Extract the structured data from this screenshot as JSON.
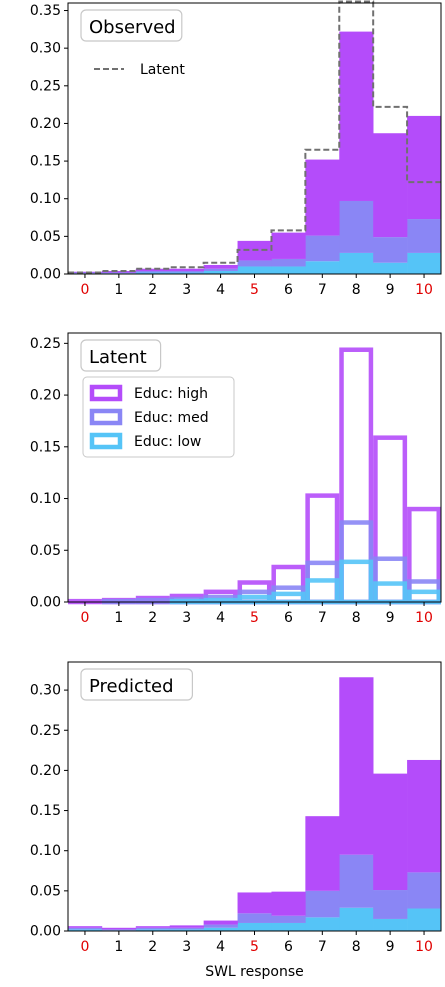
{
  "colors": {
    "high": "#b44cfa",
    "med": "#8a86f5",
    "low": "#55c4f7",
    "latent_line": "#707070",
    "highlight_tick": "#e00000",
    "axis": "#000000"
  },
  "chart_data": [
    {
      "type": "bar",
      "title": "Observed",
      "categories": [
        "0",
        "1",
        "2",
        "3",
        "4",
        "5",
        "6",
        "7",
        "8",
        "9",
        "10"
      ],
      "highlight_categories": [
        "0",
        "5",
        "10"
      ],
      "ylim": [
        0,
        0.36
      ],
      "yticks": [
        "0.00",
        "0.05",
        "0.10",
        "0.15",
        "0.20",
        "0.25",
        "0.30",
        "0.35"
      ],
      "stacked": true,
      "series": [
        {
          "key": "low",
          "values": [
            0.001,
            0.001,
            0.002,
            0.002,
            0.004,
            0.01,
            0.01,
            0.017,
            0.028,
            0.015,
            0.028
          ]
        },
        {
          "key": "med",
          "values": [
            0.001,
            0.001,
            0.002,
            0.002,
            0.003,
            0.008,
            0.01,
            0.034,
            0.069,
            0.034,
            0.045
          ]
        },
        {
          "key": "high",
          "values": [
            0.001,
            0.002,
            0.003,
            0.003,
            0.005,
            0.026,
            0.035,
            0.101,
            0.225,
            0.138,
            0.137
          ]
        }
      ],
      "overlay": {
        "name": "Latent",
        "style": "dashed-step",
        "values": [
          0.002,
          0.004,
          0.007,
          0.009,
          0.015,
          0.032,
          0.058,
          0.165,
          0.362,
          0.222,
          0.122
        ]
      },
      "legend": {
        "placement": "upper-left",
        "entries": [
          {
            "label": "Latent"
          }
        ]
      }
    },
    {
      "type": "bar",
      "title": "Latent",
      "categories": [
        "0",
        "1",
        "2",
        "3",
        "4",
        "5",
        "6",
        "7",
        "8",
        "9",
        "10"
      ],
      "highlight_categories": [
        "0",
        "5",
        "10"
      ],
      "ylim": [
        0,
        0.26
      ],
      "yticks": [
        "0.00",
        "0.05",
        "0.10",
        "0.15",
        "0.20",
        "0.25"
      ],
      "stacked": false,
      "series": [
        {
          "key": "high",
          "name": "Educ: high",
          "values": [
            0.003,
            0.004,
            0.006,
            0.008,
            0.012,
            0.021,
            0.036,
            0.105,
            0.246,
            0.161,
            0.092
          ]
        },
        {
          "key": "med",
          "name": "Educ: med",
          "values": [
            0.002,
            0.003,
            0.004,
            0.005,
            0.007,
            0.012,
            0.016,
            0.04,
            0.079,
            0.044,
            0.022
          ]
        },
        {
          "key": "low",
          "name": "Educ: low",
          "values": [
            0.001,
            0.002,
            0.002,
            0.003,
            0.004,
            0.007,
            0.01,
            0.023,
            0.041,
            0.02,
            0.012
          ]
        }
      ],
      "legend": {
        "placement": "upper-left",
        "entries": [
          {
            "key": "high",
            "label": "Educ: high"
          },
          {
            "key": "med",
            "label": "Educ: med"
          },
          {
            "key": "low",
            "label": "Educ: low"
          }
        ]
      }
    },
    {
      "type": "bar",
      "title": "Predicted",
      "categories": [
        "0",
        "1",
        "2",
        "3",
        "4",
        "5",
        "6",
        "7",
        "8",
        "9",
        "10"
      ],
      "highlight_categories": [
        "0",
        "5",
        "10"
      ],
      "xlabel": "SWL response",
      "ylim": [
        0,
        0.335
      ],
      "yticks": [
        "0.00",
        "0.05",
        "0.10",
        "0.15",
        "0.20",
        "0.25",
        "0.30"
      ],
      "stacked": true,
      "series": [
        {
          "key": "low",
          "values": [
            0.002,
            0.001,
            0.002,
            0.002,
            0.004,
            0.01,
            0.01,
            0.017,
            0.029,
            0.015,
            0.028
          ]
        },
        {
          "key": "med",
          "values": [
            0.002,
            0.001,
            0.002,
            0.002,
            0.004,
            0.012,
            0.009,
            0.033,
            0.066,
            0.036,
            0.045
          ]
        },
        {
          "key": "high",
          "values": [
            0.002,
            0.002,
            0.002,
            0.003,
            0.005,
            0.026,
            0.03,
            0.093,
            0.221,
            0.145,
            0.14
          ]
        }
      ]
    }
  ]
}
